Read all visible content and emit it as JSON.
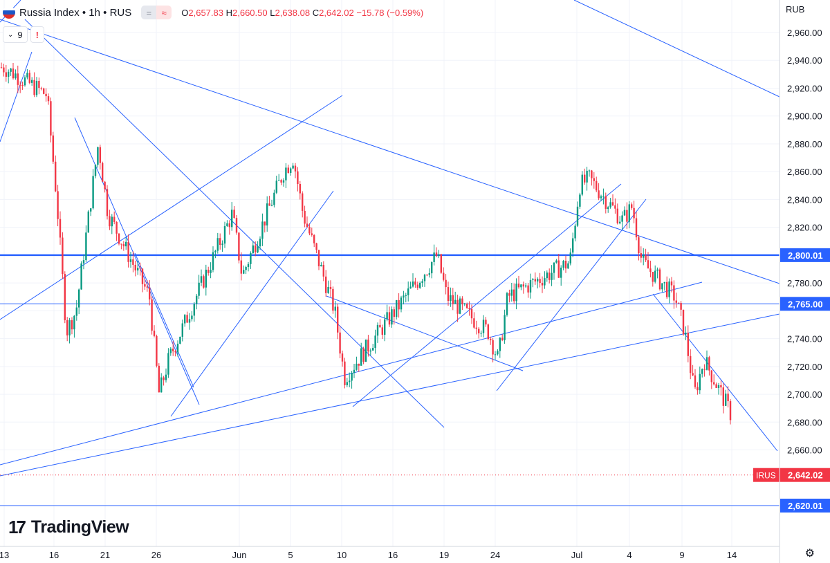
{
  "header": {
    "symbol": "Russia Index",
    "interval": "1h",
    "exchange": "RUS",
    "title": "Russia Index • 1h • RUS",
    "open_label": "O",
    "open": "2,657.83",
    "high_label": "H",
    "high": "2,660.50",
    "low_label": "L",
    "low": "2,638.08",
    "close_label": "C",
    "close": "2,642.02",
    "change": "−15.78 (−0.59%)",
    "indicator_count": "9",
    "warning": "!",
    "pill_left": "=",
    "pill_right": "≈"
  },
  "currency": "RUB",
  "branding": "TradingView",
  "colors": {
    "up": "#089981",
    "down": "#f23645",
    "trendline": "#2962ff",
    "level": "#2962ff",
    "price_label": "#f23645"
  },
  "chart_data": {
    "type": "candlestick",
    "y_axis_ticks": [
      2960,
      2940,
      2920,
      2900,
      2880,
      2860,
      2840,
      2820,
      2800,
      2780,
      2760,
      2740,
      2720,
      2700,
      2680,
      2660
    ],
    "y_axis_tick_labels": [
      "2,960.00",
      "2,940.00",
      "2,920.00",
      "2,900.00",
      "2,880.00",
      "2,860.00",
      "2,840.00",
      "2,820.00",
      "2,780.00",
      "2,740.00",
      "2,720.00",
      "2,700.00",
      "2,680.00",
      "2,660.00"
    ],
    "ylim": [
      2610,
      2970
    ],
    "x_axis_labels": [
      "13",
      "16",
      "21",
      "26",
      "Jun",
      "5",
      "10",
      "16",
      "19",
      "24",
      "Jul",
      "4",
      "9",
      "14"
    ],
    "horizontal_levels": [
      {
        "value": 2800.01,
        "label": "2,800.01",
        "weight": "bold"
      },
      {
        "value": 2765.0,
        "label": "2,765.00",
        "weight": "thin"
      },
      {
        "value": 2620.01,
        "label": "2,620.01",
        "weight": "thin"
      }
    ],
    "last_price": {
      "value": 2642.02,
      "label": "2,642.02",
      "tag": "IRUS"
    },
    "series": [
      {
        "name": "Russia Index",
        "close_path": [
          {
            "x": "13",
            "y": 2935
          },
          {
            "x": "16",
            "y": 2915
          },
          {
            "x": "16",
            "y": 2840
          },
          {
            "x": "21",
            "y": 2880
          },
          {
            "x": "21",
            "y": 2830
          },
          {
            "x": "26",
            "y": 2770
          },
          {
            "x": "26",
            "y": 2700
          },
          {
            "x": "26",
            "y": 2725
          },
          {
            "x": "Jun",
            "y": 2830
          },
          {
            "x": "Jun",
            "y": 2785
          },
          {
            "x": "5",
            "y": 2860
          },
          {
            "x": "5",
            "y": 2870
          },
          {
            "x": "5",
            "y": 2830
          },
          {
            "x": "10",
            "y": 2760
          },
          {
            "x": "10",
            "y": 2712
          },
          {
            "x": "16",
            "y": 2745
          },
          {
            "x": "16",
            "y": 2760
          },
          {
            "x": "19",
            "y": 2800
          },
          {
            "x": "19",
            "y": 2770
          },
          {
            "x": "24",
            "y": 2745
          },
          {
            "x": "24",
            "y": 2725
          },
          {
            "x": "24",
            "y": 2770
          },
          {
            "x": "Jul",
            "y": 2795
          },
          {
            "x": "Jul",
            "y": 2850
          },
          {
            "x": "Jul",
            "y": 2855
          },
          {
            "x": "4",
            "y": 2825
          },
          {
            "x": "4",
            "y": 2835
          },
          {
            "x": "4",
            "y": 2795
          },
          {
            "x": "9",
            "y": 2770
          },
          {
            "x": "9",
            "y": 2745
          },
          {
            "x": "9",
            "y": 2700
          },
          {
            "x": "9",
            "y": 2725
          },
          {
            "x": "14",
            "y": 2695
          },
          {
            "x": "14",
            "y": 2680
          },
          {
            "x": "14",
            "y": 2642.02
          }
        ]
      }
    ],
    "grid": true,
    "legend": "top-left"
  }
}
